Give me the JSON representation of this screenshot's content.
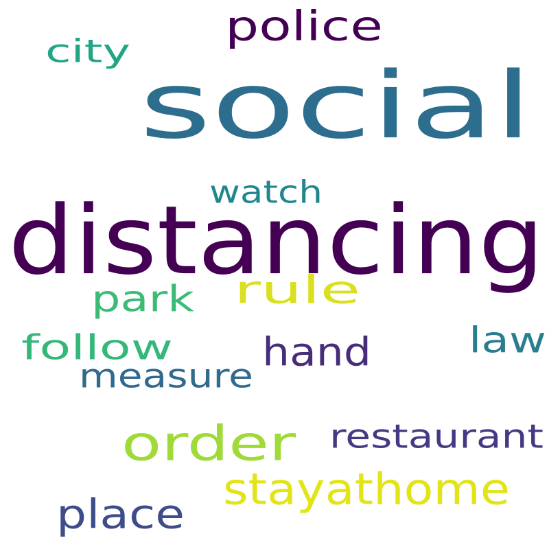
{
  "words": [
    {
      "key": "social",
      "text": "social",
      "color": "#2d6e8e"
    },
    {
      "key": "distancing",
      "text": "distancing",
      "color": "#440154"
    },
    {
      "key": "police",
      "text": "police",
      "color": "#440154"
    },
    {
      "key": "city",
      "text": "city",
      "color": "#21a585"
    },
    {
      "key": "watch",
      "text": "watch",
      "color": "#21878d"
    },
    {
      "key": "rule",
      "text": "rule",
      "color": "#d9e021"
    },
    {
      "key": "park",
      "text": "park",
      "color": "#3bbb75"
    },
    {
      "key": "follow",
      "text": "follow",
      "color": "#35b779"
    },
    {
      "key": "hand",
      "text": "hand",
      "color": "#472c7a"
    },
    {
      "key": "law",
      "text": "law",
      "color": "#287d8e"
    },
    {
      "key": "measure",
      "text": "measure",
      "color": "#306a8e"
    },
    {
      "key": "order",
      "text": "order",
      "color": "#a0da39"
    },
    {
      "key": "restaurant",
      "text": "restaurant",
      "color": "#443a83"
    },
    {
      "key": "stayathome",
      "text": "stayathome",
      "color": "#e2e418"
    },
    {
      "key": "place",
      "text": "place",
      "color": "#3e4c8a"
    }
  ]
}
